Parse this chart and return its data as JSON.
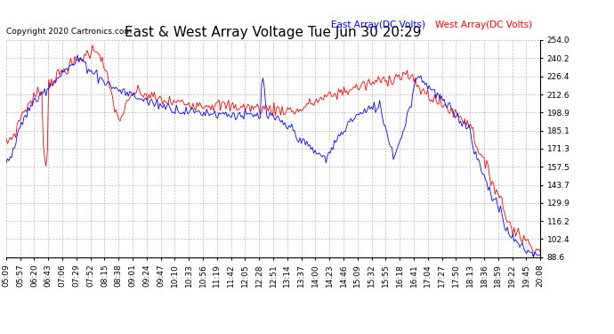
{
  "title": "East & West Array Voltage Tue Jun 30 20:29",
  "copyright": "Copyright 2020 Cartronics.com",
  "legend_east": "East Array(DC Volts)",
  "legend_west": "West Array(DC Volts)",
  "east_color": "#0000ff",
  "west_color": "#ff0000",
  "bg_color": "#ffffff",
  "grid_color": "#bbbbbb",
  "ymin": 88.6,
  "ymax": 254.0,
  "yticks": [
    88.6,
    102.4,
    116.2,
    129.9,
    143.7,
    157.5,
    171.3,
    185.1,
    198.9,
    212.6,
    226.4,
    240.2,
    254.0
  ],
  "title_fontsize": 11,
  "label_fontsize": 7.5,
  "tick_fontsize": 6.5,
  "copyright_fontsize": 6.5,
  "xtick_labels": [
    "05:09",
    "05:57",
    "06:20",
    "06:43",
    "07:06",
    "07:29",
    "07:52",
    "08:15",
    "08:38",
    "09:01",
    "09:24",
    "09:47",
    "10:10",
    "10:33",
    "10:56",
    "11:19",
    "11:42",
    "12:05",
    "12:28",
    "12:51",
    "13:14",
    "13:37",
    "14:00",
    "14:23",
    "14:46",
    "15:09",
    "15:32",
    "15:55",
    "16:18",
    "16:41",
    "17:04",
    "17:27",
    "17:50",
    "18:13",
    "18:36",
    "18:59",
    "19:22",
    "19:45",
    "20:08"
  ]
}
